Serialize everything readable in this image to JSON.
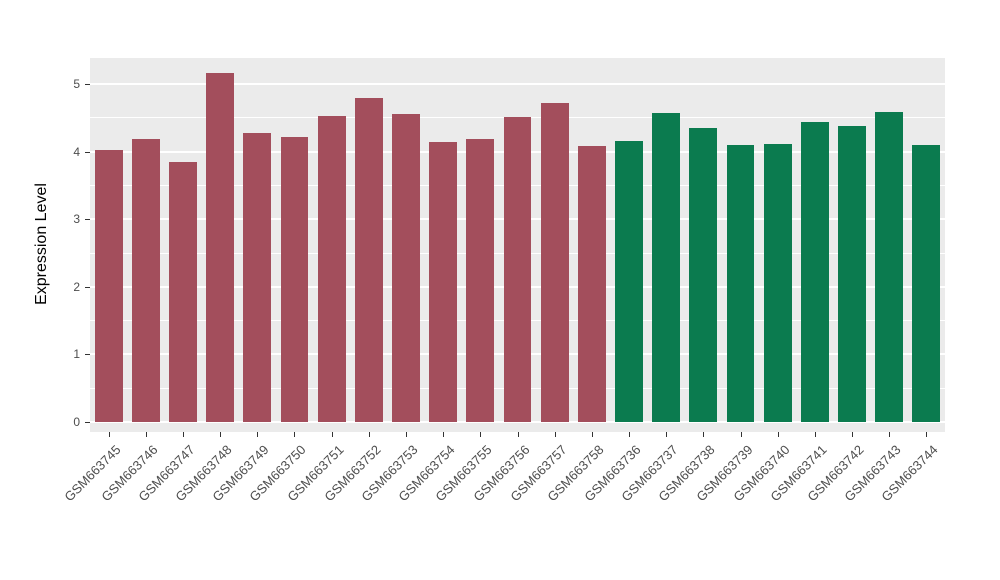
{
  "chart_data": {
    "type": "bar",
    "title": "",
    "xlabel": "",
    "ylabel": "Expression Level",
    "ylim": [
      0,
      5.38
    ],
    "yticks": [
      0,
      1,
      2,
      3,
      4,
      5
    ],
    "minor_ticks": [
      0.5,
      1.5,
      2.5,
      3.5,
      4.5
    ],
    "grid": "major and minor horizontal white gridlines on gray panel",
    "legend_position": "none",
    "categories": [
      "GSM663745",
      "GSM663746",
      "GSM663747",
      "GSM663748",
      "GSM663749",
      "GSM663750",
      "GSM663751",
      "GSM663752",
      "GSM663753",
      "GSM663754",
      "GSM663755",
      "GSM663756",
      "GSM663757",
      "GSM663758",
      "GSM663736",
      "GSM663737",
      "GSM663738",
      "GSM663739",
      "GSM663740",
      "GSM663741",
      "GSM663742",
      "GSM663743",
      "GSM663744"
    ],
    "values": [
      4.02,
      4.18,
      3.84,
      5.16,
      4.28,
      4.21,
      4.53,
      4.8,
      4.55,
      4.14,
      4.18,
      4.51,
      4.72,
      4.09,
      4.15,
      4.57,
      4.35,
      4.1,
      4.12,
      4.44,
      4.38,
      4.58,
      4.1
    ],
    "groups": [
      {
        "name": "group-red",
        "color": "#A34E5C",
        "count": 14
      },
      {
        "name": "group-green",
        "color": "#0B7B4F",
        "count": 9
      }
    ]
  },
  "style": {
    "panel_bg": "#EBEBEB",
    "grid_color": "#FFFFFF",
    "axis_text_color": "#4D4D4D",
    "tick_color": "#333333",
    "background": "#FFFFFF"
  }
}
